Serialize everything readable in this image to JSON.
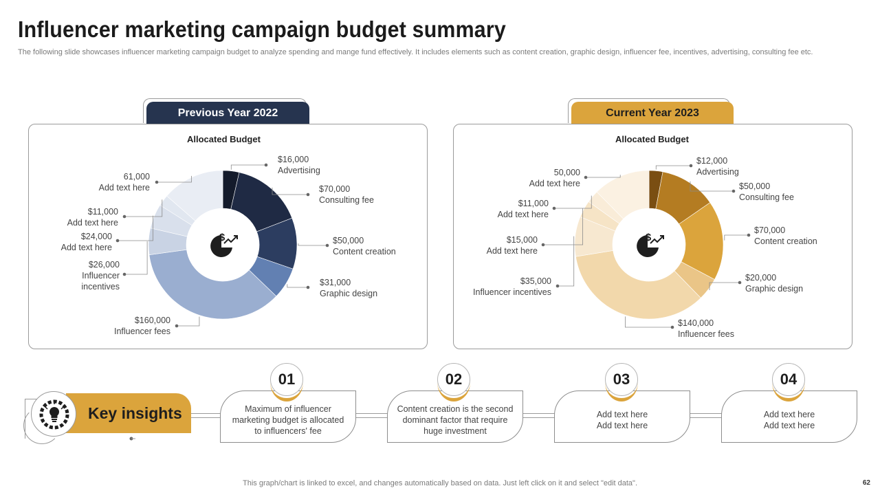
{
  "header": {
    "title": "Influencer marketing campaign budget summary",
    "subtitle": "The following slide showcases influencer marketing campaign budget to analyze spending and mange fund effectively. It includes elements such as content creation, graphic design, influencer fee, incentives, advertising, consulting fee etc."
  },
  "tabs": {
    "previous": "Previous Year 2022",
    "current": "Current Year 2023"
  },
  "colors": {
    "navy": "#26344f",
    "gold": "#dba43c"
  },
  "chart_data": [
    {
      "type": "pie",
      "title": "Allocated Budget",
      "slices": [
        {
          "name": "Advertising",
          "value": 16000,
          "value_label": "$16,000",
          "color": "#141b2b"
        },
        {
          "name": "Consulting fee",
          "value": 70000,
          "value_label": "$70,000",
          "color": "#1f2a44"
        },
        {
          "name": "Content creation",
          "value": 50000,
          "value_label": "$50,000",
          "color": "#2c3d60"
        },
        {
          "name": "Graphic design",
          "value": 31000,
          "value_label": "$31,000",
          "color": "#6280b2"
        },
        {
          "name": "Influencer  fees",
          "value": 160000,
          "value_label": "$160,000",
          "color": "#9aaed0"
        },
        {
          "name": "Influencer incentives",
          "value": 26000,
          "value_label": "$26,000",
          "color": "#c9d3e4"
        },
        {
          "name": "Add text here",
          "value": 24000,
          "value_label": "$24,000",
          "color": "#d9e0ec"
        },
        {
          "name": "Add text here",
          "value": 11000,
          "value_label": "$11,000",
          "color": "#e1e7f0"
        },
        {
          "name": "Add text here",
          "value": 61000,
          "value_label": "61,000",
          "color": "#e9edf4"
        }
      ]
    },
    {
      "type": "pie",
      "title": "Allocated Budget",
      "slices": [
        {
          "name": "Advertising",
          "value": 12000,
          "value_label": "$12,000",
          "color": "#7a4e12"
        },
        {
          "name": "Consulting fee",
          "value": 50000,
          "value_label": "$50,000",
          "color": "#b47c22"
        },
        {
          "name": "Content creation",
          "value": 70000,
          "value_label": "$70,000",
          "color": "#dba43c"
        },
        {
          "name": "Graphic design",
          "value": 20000,
          "value_label": "$20,000",
          "color": "#eac587"
        },
        {
          "name": "Influencer  fees",
          "value": 140000,
          "value_label": "$140,000",
          "color": "#f2d8ab"
        },
        {
          "name": "Influencer  incentives",
          "value": 35000,
          "value_label": "$35,000",
          "color": "#f7e8d0"
        },
        {
          "name": "Add text here",
          "value": 15000,
          "value_label": "$15,000",
          "color": "#f6e4c6"
        },
        {
          "name": "Add text here",
          "value": 11000,
          "value_label": "$11,000",
          "color": "#f9ecd8"
        },
        {
          "name": "Add text here",
          "value": 50000,
          "value_label": "50,000",
          "color": "#fbf1e2"
        }
      ]
    }
  ],
  "insights": {
    "title": "Key insights",
    "items": [
      {
        "number": "01",
        "text": "Maximum of influencer marketing budget is allocated to influencers' fee"
      },
      {
        "number": "02",
        "text": "Content creation is the second dominant factor that require huge investment"
      },
      {
        "number": "03",
        "text": "Add text here Add text here"
      },
      {
        "number": "04",
        "text": "Add text here Add text here"
      }
    ]
  },
  "footer": {
    "note": "This graph/chart is linked to excel,  and changes automatically based on data. Just left click on it and select \"edit data\".",
    "page": "62"
  }
}
